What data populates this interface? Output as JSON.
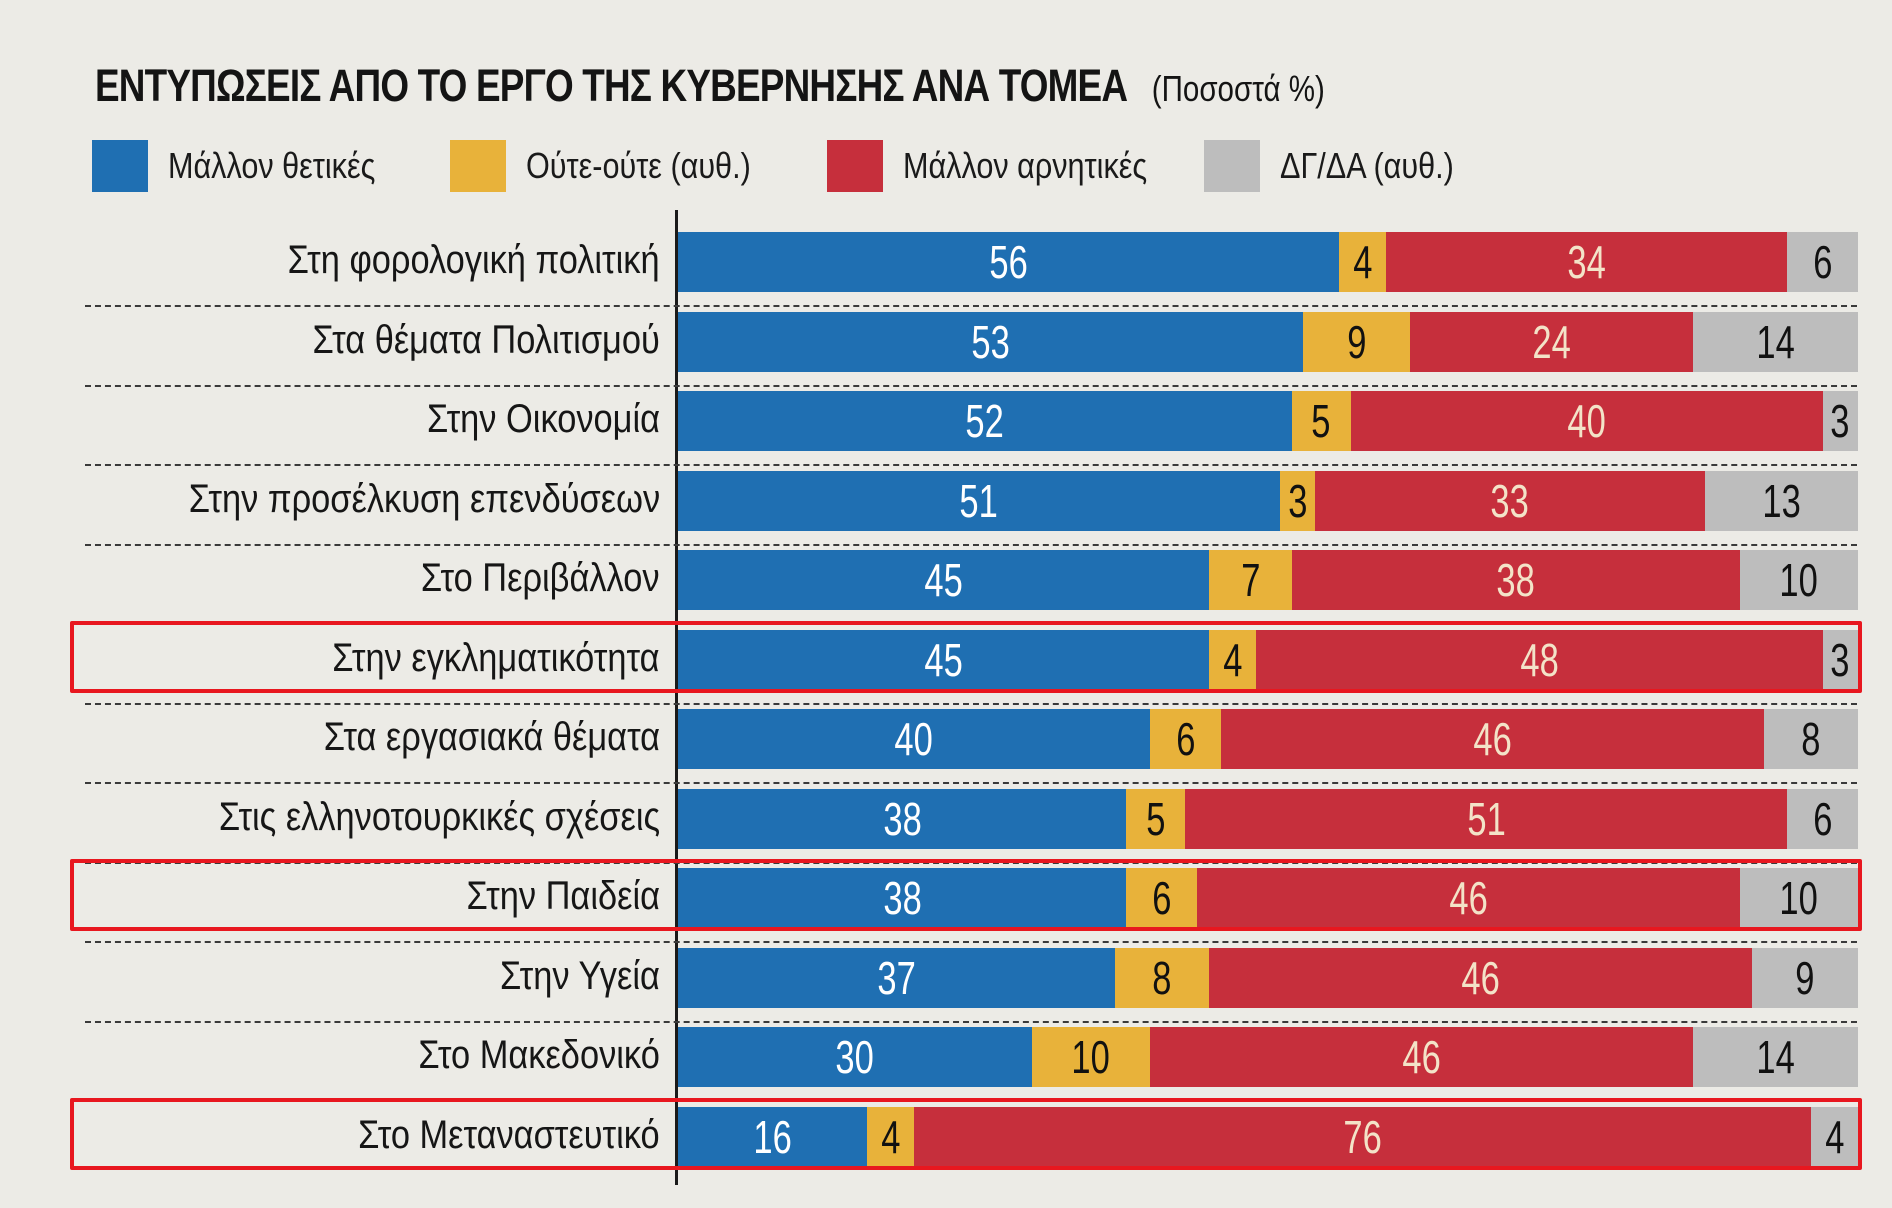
{
  "title": "ΕΝΤΥΠΩΣΕΙΣ ΑΠΟ ΤΟ ΕΡΓΟ ΤΗΣ ΚΥΒΕΡΝΗΣΗΣ ΑΝΑ ΤΟΜΕΑ",
  "subtitle": "(Ποσοστά %)",
  "colors": {
    "positive": "#1f6fb2",
    "neutral": "#e8b23a",
    "negative": "#c62f3c",
    "dk": "#bdbdbd",
    "highlight": "#e8171f"
  },
  "chart_data": {
    "type": "bar",
    "stacked": true,
    "orientation": "horizontal",
    "title": "ΕΝΤΥΠΩΣΕΙΣ ΑΠΟ ΤΟ ΕΡΓΟ ΤΗΣ ΚΥΒΕΡΝΗΣΗΣ ΑΝΑ ΤΟΜΕΑ",
    "subtitle": "(Ποσοστά %)",
    "xlim": [
      0,
      100
    ],
    "grid": false,
    "legend_position": "top",
    "categories": [
      "Στη φορολογική πολιτική",
      "Στα θέματα Πολιτισμού",
      "Στην Οικονομία",
      "Στην προσέλκυση επενδύσεων",
      "Στο Περιβάλλον",
      "Στην εγκληματικότητα",
      "Στα εργασιακά θέματα",
      "Στις ελληνοτουρκικές σχέσεις",
      "Στην Παιδεία",
      "Στην Υγεία",
      "Στο Μακεδονικό",
      "Στο Μεταναστευτικό"
    ],
    "series": [
      {
        "name": "Μάλλον θετικές",
        "color": "#1f6fb2",
        "values": [
          56,
          53,
          52,
          51,
          45,
          45,
          40,
          38,
          38,
          37,
          30,
          16
        ]
      },
      {
        "name": "Ούτε-ούτε (αυθ.)",
        "color": "#e8b23a",
        "values": [
          4,
          9,
          5,
          3,
          7,
          4,
          6,
          5,
          6,
          8,
          10,
          4
        ]
      },
      {
        "name": "Μάλλον αρνητικές",
        "color": "#c62f3c",
        "values": [
          34,
          24,
          40,
          33,
          38,
          48,
          46,
          51,
          46,
          46,
          46,
          76
        ]
      },
      {
        "name": "ΔΓ/ΔΑ (αυθ.)",
        "color": "#bdbdbd",
        "values": [
          6,
          14,
          3,
          13,
          10,
          3,
          8,
          6,
          10,
          9,
          14,
          4
        ]
      }
    ],
    "highlighted_categories": [
      "Στην εγκληματικότητα",
      "Στην Παιδεία",
      "Στο Μεταναστευτικό"
    ]
  }
}
